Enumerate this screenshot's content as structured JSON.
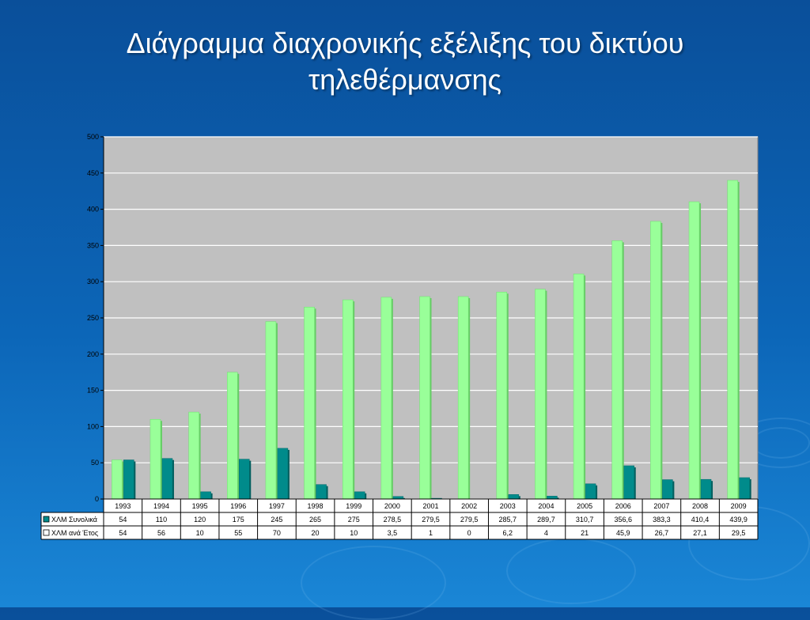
{
  "slide": {
    "title_line1": "Διάγραμμα διαχρονικής εξέλιξης του δικτύου",
    "title_line2": "τηλεθέρμανσης"
  },
  "colors": {
    "background": "#0c66b8",
    "plot_area": "#c0c0c0",
    "series1": "#99ff99",
    "series2": "#008b8b",
    "table": "#ffffff"
  },
  "chart_data": {
    "type": "bar",
    "categories": [
      "1993",
      "1994",
      "1995",
      "1996",
      "1997",
      "1998",
      "1999",
      "2000",
      "2001",
      "2002",
      "2003",
      "2004",
      "2005",
      "2006",
      "2007",
      "2008",
      "2009"
    ],
    "ylim": [
      0,
      500
    ],
    "yticks": [
      0,
      50,
      100,
      150,
      200,
      250,
      300,
      350,
      400,
      450,
      500
    ],
    "grid": true,
    "legend": "data-table",
    "series": [
      {
        "name": "ΧΛΜ Συνολικά",
        "values": [
          54,
          110,
          120,
          175,
          245,
          265,
          275,
          278.5,
          279.5,
          279.5,
          285.7,
          289.7,
          310.7,
          356.6,
          383.3,
          410.4,
          439.9
        ],
        "labels": [
          "54",
          "110",
          "120",
          "175",
          "245",
          "265",
          "275",
          "278,5",
          "279,5",
          "279,5",
          "285,7",
          "289,7",
          "310,7",
          "356,6",
          "383,3",
          "410,4",
          "439,9"
        ]
      },
      {
        "name": "ΧΛΜ ανά Έτος",
        "values": [
          54,
          56,
          10,
          55,
          70,
          20,
          10,
          3.5,
          1,
          0,
          6.2,
          4,
          21,
          45.9,
          26.7,
          27.1,
          29.5
        ],
        "labels": [
          "54",
          "56",
          "10",
          "55",
          "70",
          "20",
          "10",
          "3,5",
          "1",
          "0",
          "6,2",
          "4",
          "21",
          "45,9",
          "26,7",
          "27,1",
          "29,5"
        ]
      }
    ]
  }
}
